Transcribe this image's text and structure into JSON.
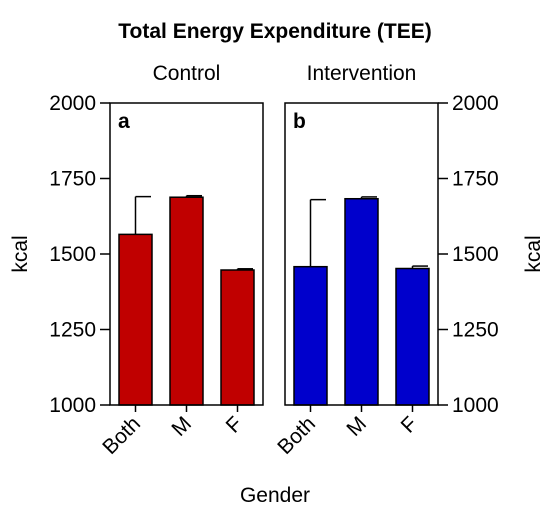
{
  "chart_data": {
    "type": "bar",
    "title": "Total Energy Expenditure (TEE)",
    "xlabel": "Gender",
    "ylabel": "kcal",
    "ylim": [
      1000,
      2000
    ],
    "yticks": [
      1000,
      1250,
      1500,
      1750,
      2000
    ],
    "categories": [
      "Both",
      "M",
      "F"
    ],
    "panels": [
      {
        "letter": "a",
        "title": "Control",
        "color": "#c00000",
        "values": [
          1565,
          1688,
          1447
        ],
        "errors": [
          125,
          5,
          4
        ]
      },
      {
        "letter": "b",
        "title": "Intervention",
        "color": "#0000cc",
        "values": [
          1458,
          1683,
          1452
        ],
        "errors": [
          222,
          6,
          8
        ]
      }
    ]
  }
}
